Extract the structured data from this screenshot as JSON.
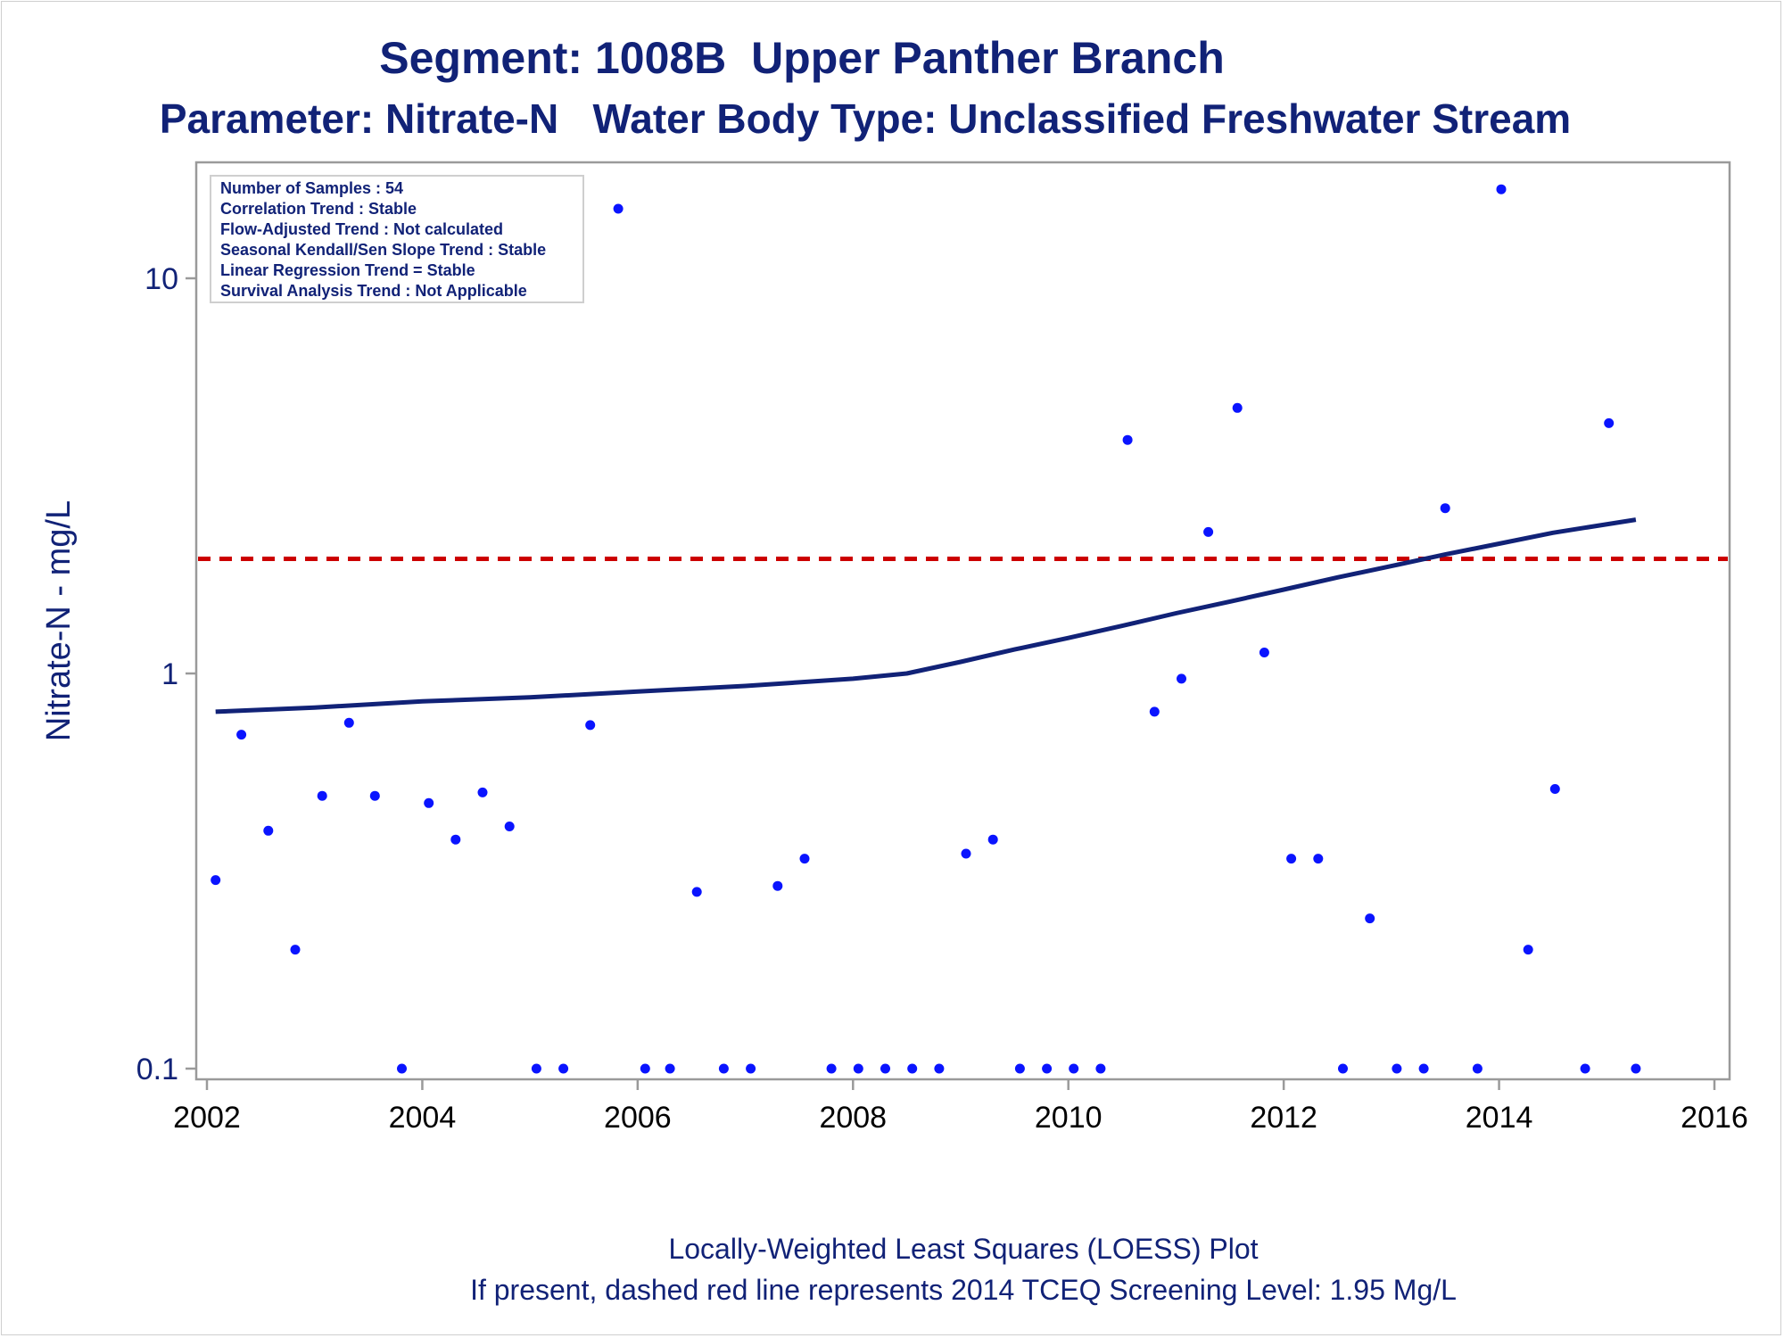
{
  "title": "Segment: 1008B  Upper Panther Branch",
  "subtitle": "Parameter: Nitrate-N   Water Body Type: Unclassified Freshwater Stream",
  "footnotes": [
    "Locally-Weighted Least Squares (LOESS) Plot",
    "If present, dashed red line represents 2014 TCEQ Screening Level: 1.95 Mg/L"
  ],
  "stats_box": [
    "Number of Samples : 54",
    "Correlation Trend : Stable",
    "Flow-Adjusted Trend : Not calculated",
    "Seasonal Kendall/Sen Slope Trend : Stable",
    "Linear Regression Trend = Stable",
    "Survival Analysis Trend : Not Applicable"
  ],
  "colors": {
    "text": "#112277",
    "points": "#0a14ff",
    "loess": "#112277",
    "screening": "#cc0000",
    "axis": "#9a9a9a"
  },
  "chart_data": {
    "type": "scatter",
    "title": "Segment: 1008B  Upper Panther Branch",
    "subtitle": "Parameter: Nitrate-N   Water Body Type: Unclassified Freshwater Stream",
    "ylabel": "Nitrate-N - mg/L",
    "xlabel": "",
    "xlim": [
      2002,
      2016
    ],
    "ylim": [
      0.1,
      17
    ],
    "yscale": "log",
    "xticks": [
      2002,
      2004,
      2006,
      2008,
      2010,
      2012,
      2014,
      2016
    ],
    "yticks": [
      {
        "value": 0.1,
        "label": "0.1"
      },
      {
        "value": 1,
        "label": "1"
      },
      {
        "value": 10,
        "label": "10"
      }
    ],
    "grid": false,
    "screening_level": 1.95,
    "points": [
      {
        "x": 2002.08,
        "y": 0.3
      },
      {
        "x": 2002.32,
        "y": 0.7
      },
      {
        "x": 2002.57,
        "y": 0.4
      },
      {
        "x": 2002.82,
        "y": 0.2
      },
      {
        "x": 2003.07,
        "y": 0.49
      },
      {
        "x": 2003.32,
        "y": 0.75
      },
      {
        "x": 2003.56,
        "y": 0.49
      },
      {
        "x": 2003.81,
        "y": 0.1
      },
      {
        "x": 2004.06,
        "y": 0.47
      },
      {
        "x": 2004.31,
        "y": 0.38
      },
      {
        "x": 2004.56,
        "y": 0.5
      },
      {
        "x": 2004.81,
        "y": 0.41
      },
      {
        "x": 2005.06,
        "y": 0.1
      },
      {
        "x": 2005.31,
        "y": 0.1
      },
      {
        "x": 2005.56,
        "y": 0.74
      },
      {
        "x": 2005.82,
        "y": 15.0
      },
      {
        "x": 2006.07,
        "y": 0.1
      },
      {
        "x": 2006.3,
        "y": 0.1
      },
      {
        "x": 2006.55,
        "y": 0.28
      },
      {
        "x": 2006.8,
        "y": 0.1
      },
      {
        "x": 2007.05,
        "y": 0.1
      },
      {
        "x": 2007.3,
        "y": 0.29
      },
      {
        "x": 2007.55,
        "y": 0.34
      },
      {
        "x": 2007.8,
        "y": 0.1
      },
      {
        "x": 2008.05,
        "y": 0.1
      },
      {
        "x": 2008.3,
        "y": 0.1
      },
      {
        "x": 2008.55,
        "y": 0.1
      },
      {
        "x": 2008.8,
        "y": 0.1
      },
      {
        "x": 2009.05,
        "y": 0.35
      },
      {
        "x": 2009.3,
        "y": 0.38
      },
      {
        "x": 2009.55,
        "y": 0.1
      },
      {
        "x": 2009.8,
        "y": 0.1
      },
      {
        "x": 2010.05,
        "y": 0.1
      },
      {
        "x": 2010.3,
        "y": 0.1
      },
      {
        "x": 2010.55,
        "y": 3.9
      },
      {
        "x": 2010.8,
        "y": 0.8
      },
      {
        "x": 2011.05,
        "y": 0.97
      },
      {
        "x": 2011.3,
        "y": 2.28
      },
      {
        "x": 2011.57,
        "y": 4.7
      },
      {
        "x": 2011.82,
        "y": 1.13
      },
      {
        "x": 2012.07,
        "y": 0.34
      },
      {
        "x": 2012.32,
        "y": 0.34
      },
      {
        "x": 2012.55,
        "y": 0.1
      },
      {
        "x": 2012.8,
        "y": 0.24
      },
      {
        "x": 2013.05,
        "y": 0.1
      },
      {
        "x": 2013.3,
        "y": 0.1
      },
      {
        "x": 2013.5,
        "y": 2.62
      },
      {
        "x": 2013.8,
        "y": 0.1
      },
      {
        "x": 2014.02,
        "y": 16.8
      },
      {
        "x": 2014.27,
        "y": 0.2
      },
      {
        "x": 2014.52,
        "y": 0.51
      },
      {
        "x": 2014.8,
        "y": 0.1
      },
      {
        "x": 2015.02,
        "y": 4.3
      },
      {
        "x": 2015.27,
        "y": 0.1
      }
    ],
    "loess": [
      {
        "x": 2002.08,
        "y": 0.8
      },
      {
        "x": 2003.0,
        "y": 0.82
      },
      {
        "x": 2004.0,
        "y": 0.85
      },
      {
        "x": 2005.0,
        "y": 0.87
      },
      {
        "x": 2006.0,
        "y": 0.9
      },
      {
        "x": 2007.0,
        "y": 0.93
      },
      {
        "x": 2008.0,
        "y": 0.97
      },
      {
        "x": 2008.5,
        "y": 1.0
      },
      {
        "x": 2009.0,
        "y": 1.07
      },
      {
        "x": 2009.5,
        "y": 1.15
      },
      {
        "x": 2010.0,
        "y": 1.23
      },
      {
        "x": 2010.5,
        "y": 1.32
      },
      {
        "x": 2011.0,
        "y": 1.42
      },
      {
        "x": 2011.5,
        "y": 1.52
      },
      {
        "x": 2012.0,
        "y": 1.63
      },
      {
        "x": 2012.5,
        "y": 1.75
      },
      {
        "x": 2013.0,
        "y": 1.87
      },
      {
        "x": 2013.5,
        "y": 2.0
      },
      {
        "x": 2014.0,
        "y": 2.13
      },
      {
        "x": 2014.5,
        "y": 2.27
      },
      {
        "x": 2015.27,
        "y": 2.45
      }
    ]
  }
}
